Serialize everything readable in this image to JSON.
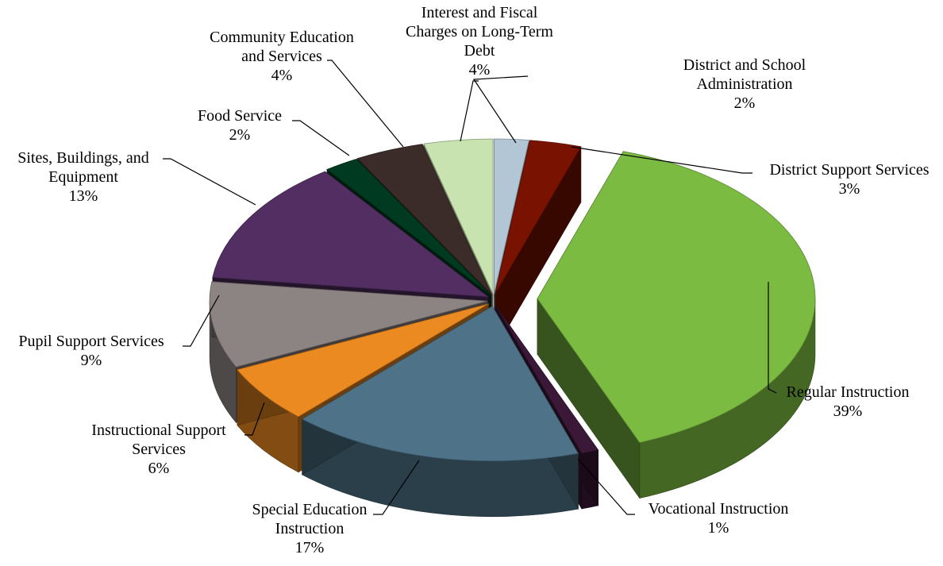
{
  "chart_data": {
    "type": "pie",
    "variant": "3d-exploded",
    "title": "",
    "legend": "none",
    "slices": [
      {
        "label": "District and School Administration",
        "value": 2,
        "value_label": "2%",
        "color": "#b3c6d6"
      },
      {
        "label": "District Support Services",
        "value": 3,
        "value_label": "3%",
        "color": "#7a1200"
      },
      {
        "label": "Regular Instruction",
        "value": 39,
        "value_label": "39%",
        "color": "#7cbb42"
      },
      {
        "label": "Vocational Instruction",
        "value": 1,
        "value_label": "1%",
        "color": "#3b1838"
      },
      {
        "label": "Special Education Instruction",
        "value": 17,
        "value_label": "17%",
        "color": "#4e7388"
      },
      {
        "label": "Instructional Support Services",
        "value": 6,
        "value_label": "6%",
        "color": "#ec8a22"
      },
      {
        "label": "Pupil Support Services",
        "value": 9,
        "value_label": "9%",
        "color": "#8c8482"
      },
      {
        "label": "Sites, Buildings, and Equipment",
        "value": 13,
        "value_label": "13%",
        "color": "#532e62"
      },
      {
        "label": "Food Service",
        "value": 2,
        "value_label": "2%",
        "color": "#003a20"
      },
      {
        "label": "Community Education and Services",
        "value": 4,
        "value_label": "4%",
        "color": "#3b2c2a"
      },
      {
        "label": "Interest and Fiscal Charges on Long-Term Debt",
        "value": 4,
        "value_label": "4%",
        "color": "#c8e2b0"
      }
    ]
  }
}
